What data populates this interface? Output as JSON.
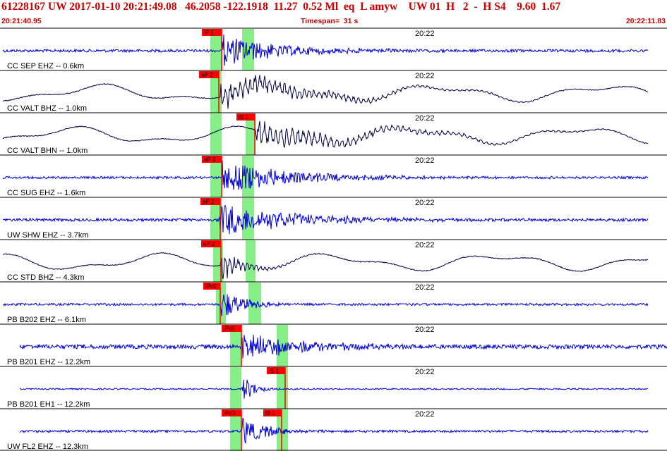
{
  "header": {
    "title": "61228167 UW 2017-01-10 20:21:49.08   46.2058 -122.1918  11.27  0.52 Ml  eq  L amyw    UW 01  H   2  -  H S4    9.60  1.67",
    "start_time": "20:21:40.95",
    "timespan": "Timespan=  31 s",
    "end_time": "20:22:11.83"
  },
  "colors": {
    "pick_box": "#ff0000",
    "window_band": "#88ee88",
    "trace_blue": "#0000cc",
    "trace_black": "#000040",
    "header_text": "#c80000"
  },
  "traces": [
    {
      "label": "CC SEP EHZ -- 0.6km",
      "time_mark": "20:22",
      "color": "blue",
      "picks": [
        "iP 1"
      ],
      "wave": "noise"
    },
    {
      "label": "CC VALT BHZ -- 1.0km",
      "time_mark": "20:22",
      "color": "black",
      "picks": [
        "eP 2"
      ],
      "wave": "longperiod"
    },
    {
      "label": "CC VALT BHN -- 1.0km",
      "time_mark": "20:22",
      "color": "black",
      "picks": [
        "iS 1"
      ],
      "wave": "longperiod"
    },
    {
      "label": "CC SUG EHZ -- 1.6km",
      "time_mark": "20:22",
      "color": "blue",
      "picks": [
        "eP 2"
      ],
      "wave": "noise"
    },
    {
      "label": "UW SHW EHZ -- 3.7km",
      "time_mark": "20:22",
      "color": "blue",
      "picks": [
        "eP 2"
      ],
      "wave": "noise"
    },
    {
      "label": "CC STD BHZ -- 4.3km",
      "time_mark": "20:22",
      "color": "black",
      "picks": [
        "eP 2"
      ],
      "wave": "longperiod"
    },
    {
      "label": "PB B202 EHZ -- 6.1km",
      "time_mark": "20:22",
      "color": "blue",
      "picks": [
        "iPc0"
      ],
      "wave": "noise"
    },
    {
      "label": "PB B201 EHZ -- 12.2km",
      "time_mark": "20:22",
      "color": "blue",
      "picks": [
        "iPc0"
      ],
      "wave": "noise"
    },
    {
      "label": "PB B201 EH1 -- 12.2km",
      "time_mark": "20:22",
      "color": "blue",
      "picks": [
        "iS 1"
      ],
      "wave": "noise"
    },
    {
      "label": "UW FL2 EHZ -- 12.3km",
      "time_mark": "20:22",
      "color": "blue",
      "picks": [
        "iPd0",
        "iS 1"
      ],
      "wave": "noise"
    }
  ]
}
